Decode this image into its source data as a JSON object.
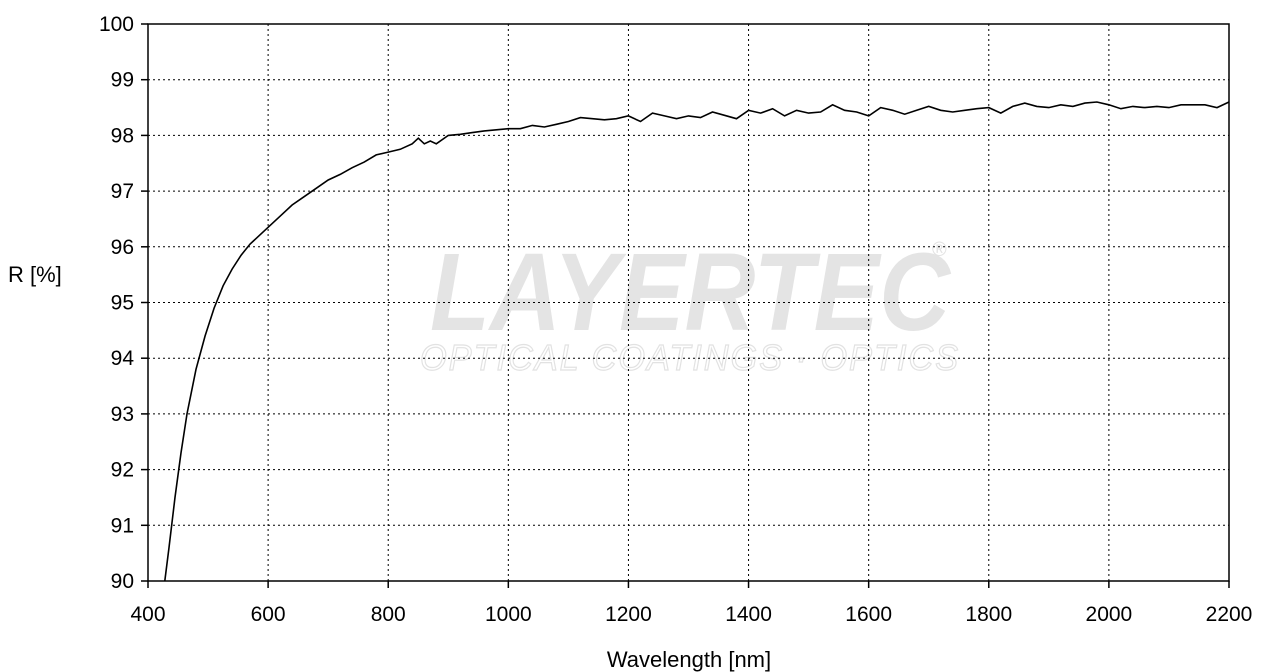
{
  "chart_data": {
    "type": "line",
    "title": "",
    "xlabel": "Wavelength [nm]",
    "ylabel": "R [%]",
    "xlim": [
      400,
      2200
    ],
    "ylim": [
      90,
      100
    ],
    "xticks": [
      400,
      600,
      800,
      1000,
      1200,
      1400,
      1600,
      1800,
      2000,
      2200
    ],
    "yticks": [
      90,
      91,
      92,
      93,
      94,
      95,
      96,
      97,
      98,
      99,
      100
    ],
    "grid": true,
    "legend": "none",
    "series": [
      {
        "color": "#000000",
        "x": [
          428,
          435,
          445,
          455,
          465,
          480,
          495,
          510,
          525,
          540,
          555,
          570,
          585,
          600,
          620,
          640,
          660,
          680,
          700,
          720,
          740,
          760,
          780,
          800,
          820,
          840,
          850,
          860,
          870,
          880,
          900,
          920,
          940,
          960,
          980,
          1000,
          1020,
          1040,
          1060,
          1080,
          1100,
          1120,
          1140,
          1160,
          1180,
          1200,
          1220,
          1240,
          1260,
          1280,
          1300,
          1320,
          1340,
          1360,
          1380,
          1400,
          1420,
          1440,
          1460,
          1480,
          1500,
          1520,
          1540,
          1560,
          1580,
          1600,
          1620,
          1640,
          1660,
          1680,
          1700,
          1720,
          1740,
          1760,
          1780,
          1800,
          1820,
          1840,
          1860,
          1880,
          1900,
          1920,
          1940,
          1960,
          1980,
          2000,
          2020,
          2040,
          2060,
          2080,
          2100,
          2120,
          2140,
          2160,
          2180,
          2200
        ],
        "y": [
          90.0,
          90.6,
          91.5,
          92.3,
          93.0,
          93.8,
          94.4,
          94.9,
          95.3,
          95.6,
          95.85,
          96.05,
          96.2,
          96.35,
          96.55,
          96.75,
          96.9,
          97.05,
          97.2,
          97.3,
          97.42,
          97.52,
          97.65,
          97.7,
          97.75,
          97.85,
          97.95,
          97.85,
          97.9,
          97.85,
          98.0,
          98.02,
          98.05,
          98.08,
          98.1,
          98.12,
          98.12,
          98.18,
          98.15,
          98.2,
          98.25,
          98.32,
          98.3,
          98.28,
          98.3,
          98.35,
          98.25,
          98.4,
          98.35,
          98.3,
          98.35,
          98.32,
          98.42,
          98.36,
          98.3,
          98.45,
          98.4,
          98.48,
          98.35,
          98.45,
          98.4,
          98.42,
          98.55,
          98.45,
          98.42,
          98.35,
          98.5,
          98.45,
          98.38,
          98.45,
          98.52,
          98.45,
          98.42,
          98.45,
          98.48,
          98.5,
          98.4,
          98.52,
          98.58,
          98.52,
          98.5,
          98.55,
          98.52,
          98.58,
          98.6,
          98.55,
          98.48,
          98.52,
          98.5,
          98.52,
          98.5,
          98.55,
          98.55,
          98.55,
          98.5,
          98.6
        ]
      }
    ]
  },
  "watermark": {
    "brand": "LAYERTEC",
    "tagline": "OPTICAL COATINGS · OPTICS",
    "registered": "®"
  }
}
